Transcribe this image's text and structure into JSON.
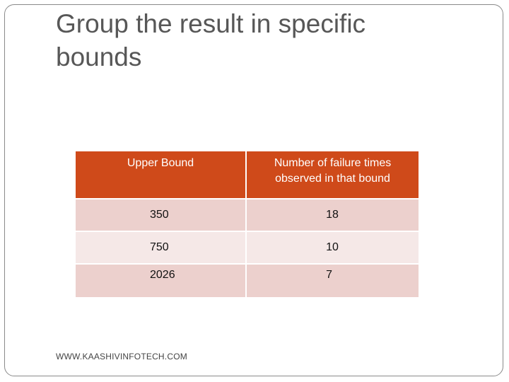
{
  "slide": {
    "title": "Group the result in specific bounds",
    "footer": "WWW.KAASHIVINFOTECH.COM"
  },
  "table": {
    "headers": {
      "upper_bound": "Upper Bound",
      "failure_count_line1": "Number  of failure times",
      "failure_count_line2": "observed in that bound"
    },
    "rows": [
      {
        "upper_bound": "350",
        "count": "18"
      },
      {
        "upper_bound": "750",
        "count": "10"
      },
      {
        "upper_bound": "2026",
        "count": "7"
      }
    ]
  },
  "colors": {
    "header": "#cf4a1a",
    "row_dark": "#ecd0cd",
    "row_light": "#f5e8e7",
    "title_text": "#575757"
  }
}
